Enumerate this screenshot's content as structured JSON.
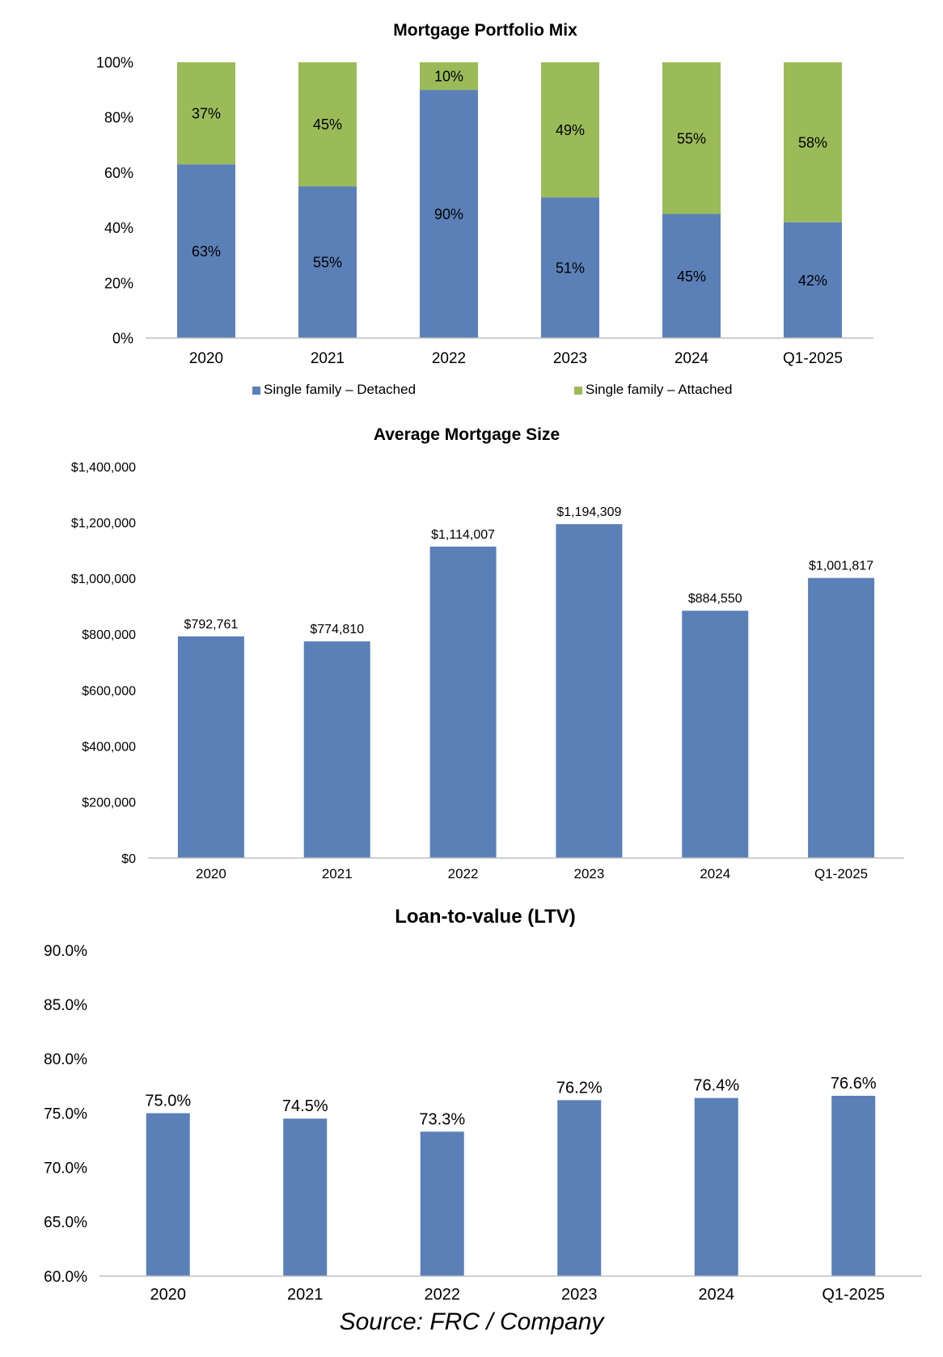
{
  "source": "Source: FRC / Company",
  "colors": {
    "blue": "#5b80b8",
    "green": "#9bbb59",
    "axis": "#c0c0c0"
  },
  "chart_data": [
    {
      "type": "bar",
      "stacked": true,
      "title": "Mortgage Portfolio Mix",
      "categories": [
        "2020",
        "2021",
        "2022",
        "2023",
        "2024",
        "Q1-2025"
      ],
      "series": [
        {
          "name": "Single  family – Detached",
          "values": [
            63,
            55,
            90,
            51,
            45,
            42
          ],
          "labels": [
            "63%",
            "55%",
            "90%",
            "51%",
            "45%",
            "42%"
          ],
          "color": "#5b80b8"
        },
        {
          "name": "Single  family – Attached",
          "values": [
            37,
            45,
            10,
            49,
            55,
            58
          ],
          "labels": [
            "37%",
            "45%",
            "10%",
            "49%",
            "55%",
            "58%"
          ],
          "color": "#9bbb59"
        }
      ],
      "ylim": [
        0,
        100
      ],
      "yticks": [
        "0%",
        "20%",
        "40%",
        "60%",
        "80%",
        "100%"
      ],
      "legend": "bottom",
      "grid": false
    },
    {
      "type": "bar",
      "title": "Average Mortgage Size",
      "categories": [
        "2020",
        "2021",
        "2022",
        "2023",
        "2024",
        "Q1-2025"
      ],
      "values": [
        792761,
        774810,
        1114007,
        1194309,
        884550,
        1001817
      ],
      "labels": [
        "$792,761",
        "$774,810",
        "$1,114,007",
        "$1,194,309",
        "$884,550",
        "$1,001,817"
      ],
      "ylim": [
        0,
        1400000
      ],
      "yticks": [
        "$0",
        "$200,000",
        "$400,000",
        "$600,000",
        "$800,000",
        "$1,000,000",
        "$1,200,000",
        "$1,400,000"
      ],
      "grid": false
    },
    {
      "type": "bar",
      "title": "Loan-to-value (LTV)",
      "categories": [
        "2020",
        "2021",
        "2022",
        "2023",
        "2024",
        "Q1-2025"
      ],
      "values": [
        75.0,
        74.5,
        73.3,
        76.2,
        76.4,
        76.6
      ],
      "labels": [
        "75.0%",
        "74.5%",
        "73.3%",
        "76.2%",
        "76.4%",
        "76.6%"
      ],
      "ylim": [
        60,
        90
      ],
      "yticks": [
        "60.0%",
        "65.0%",
        "70.0%",
        "75.0%",
        "80.0%",
        "85.0%",
        "90.0%"
      ],
      "grid": false
    }
  ]
}
